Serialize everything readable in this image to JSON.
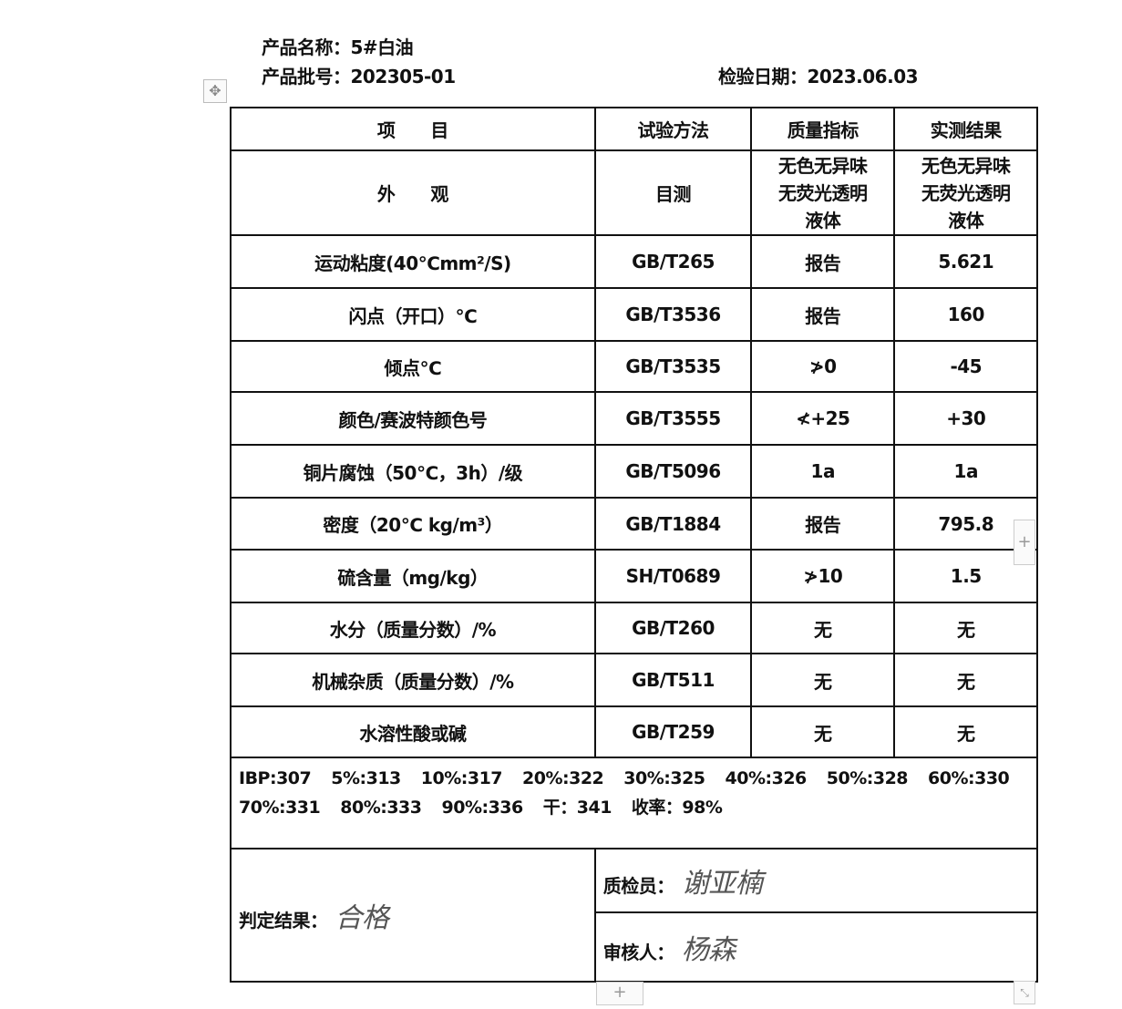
{
  "header": {
    "product_name_label": "产品名称：",
    "product_name": "5#白油",
    "batch_label": "产品批号：",
    "batch": "202305-01",
    "date_label": "检验日期：",
    "date": "2023.06.03"
  },
  "table": {
    "columns": [
      "项　　目",
      "试验方法",
      "质量指标",
      "实测结果"
    ],
    "appearance": {
      "item": "外　　观",
      "method": "目测",
      "spec": [
        "无色无异味",
        "无荧光透明",
        "液体"
      ],
      "result": [
        "无色无异味",
        "无荧光透明",
        "液体"
      ]
    },
    "rows": [
      {
        "item": "运动粘度(40℃mm²/S)",
        "method": "GB/T265",
        "spec": "报告",
        "result": "5.621"
      },
      {
        "item": "闪点（开口）℃",
        "method": "GB/T3536",
        "spec": "报告",
        "result": "160"
      },
      {
        "item": "倾点℃",
        "method": "GB/T3535",
        "spec": "≯0",
        "result": "-45"
      },
      {
        "item": "颜色/赛波特颜色号",
        "method": "GB/T3555",
        "spec": "≮+25",
        "result": "+30"
      },
      {
        "item": "铜片腐蚀（50℃，3h）/级",
        "method": "GB/T5096",
        "spec": "1a",
        "result": "1a"
      },
      {
        "item": "密度（20℃ kg/m³）",
        "method": "GB/T1884",
        "spec": "报告",
        "result": "795.8"
      },
      {
        "item": "硫含量（mg/kg）",
        "method": "SH/T0689",
        "spec": "≯10",
        "result": "1.5"
      },
      {
        "item": "水分（质量分数）/%",
        "method": "GB/T260",
        "spec": "无",
        "result": "无"
      },
      {
        "item": "机械杂质（质量分数）/%",
        "method": "GB/T511",
        "spec": "无",
        "result": "无"
      },
      {
        "item": "水溶性酸或碱",
        "method": "GB/T259",
        "spec": "无",
        "result": "无"
      }
    ],
    "distillation": [
      "IBP:307",
      "5%:313",
      "10%:317",
      "20%:322",
      "30%:325",
      "40%:326",
      "50%:328",
      "60%:330",
      "70%:331",
      "80%:333",
      "90%:336",
      "干：341",
      "收率：98%"
    ],
    "judgement_label": "判定结果：",
    "judgement_signature": "合格",
    "inspector_label": "质检员：",
    "inspector_signature": "谢亚楠",
    "reviewer_label": "审核人：",
    "reviewer_signature": "杨森"
  },
  "icons": {
    "move": "move-icon",
    "add": "plus-icon",
    "resize": "resize-icon"
  }
}
